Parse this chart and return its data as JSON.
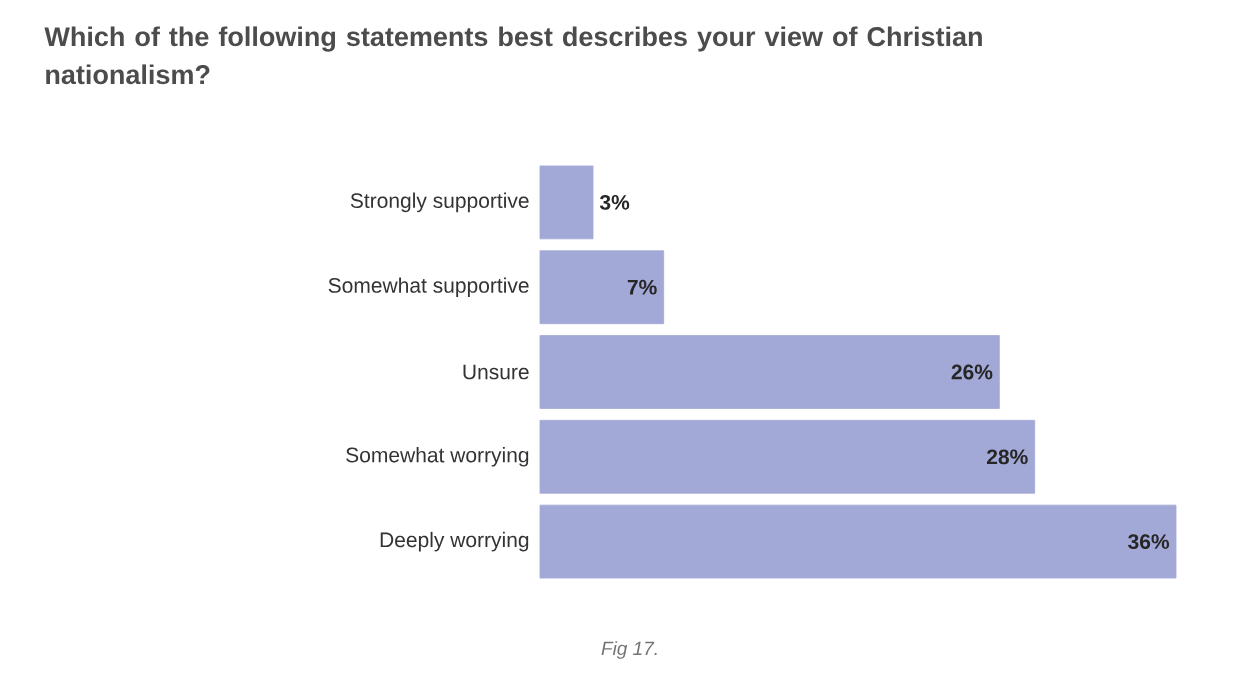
{
  "chart_data": {
    "type": "bar",
    "orientation": "horizontal",
    "title": "Which of the following statements best describes your view of Christian nationalism?",
    "categories": [
      "Strongly supportive",
      "Somewhat supportive",
      "Unsure",
      "Somewhat worrying",
      "Deeply worrying"
    ],
    "values": [
      3,
      7,
      26,
      28,
      36
    ],
    "value_labels": [
      "3%",
      "7%",
      "26%",
      "28%",
      "36%"
    ],
    "color": "#a2a9d6",
    "annotations": [
      "Fig 17."
    ]
  }
}
